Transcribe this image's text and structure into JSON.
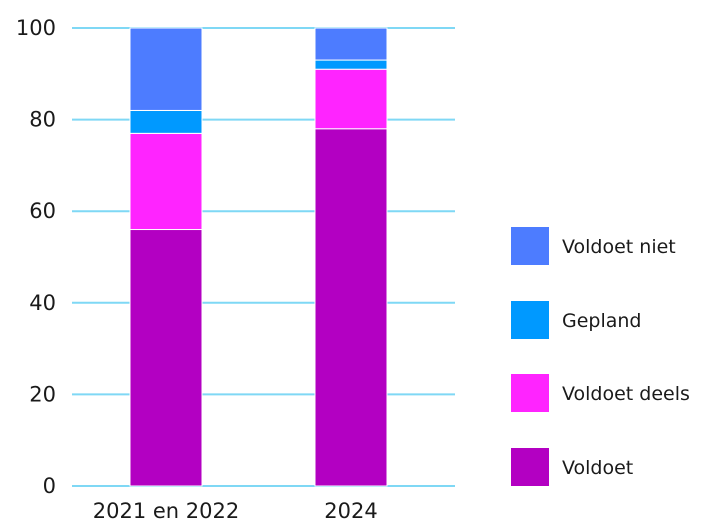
{
  "chart_data": {
    "type": "bar",
    "stacked": true,
    "categories": [
      "2021 en 2022",
      "2024"
    ],
    "series": [
      {
        "name": "Voldoet",
        "color": "#b300c2",
        "values": [
          56,
          78
        ]
      },
      {
        "name": "Voldoet deels",
        "color": "#ff24ff",
        "values": [
          21,
          13
        ]
      },
      {
        "name": "Gepland",
        "color": "#0099ff",
        "values": [
          5,
          2
        ]
      },
      {
        "name": "Voldoet niet",
        "color": "#4d7cff",
        "values": [
          18,
          7
        ]
      }
    ],
    "ylim": [
      0,
      100
    ],
    "yticks": [
      "0",
      "20",
      "40",
      "60",
      "80",
      "100"
    ],
    "grid": true,
    "grid_color": "#7fd8f5",
    "legend_position": "right",
    "legend_order": [
      "Voldoet niet",
      "Gepland",
      "Voldoet deels",
      "Voldoet"
    ]
  }
}
